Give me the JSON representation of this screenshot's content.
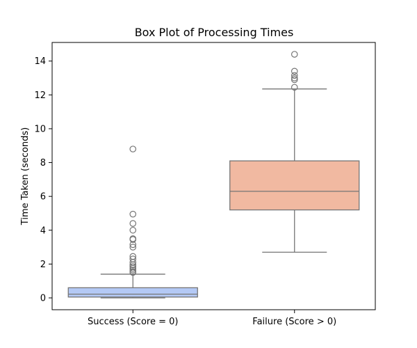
{
  "chart_data": {
    "type": "box",
    "title": "Box Plot of Processing Times",
    "xlabel": "",
    "ylabel": "Time Taken (seconds)",
    "ylim": [
      -0.7,
      15.1
    ],
    "yticks": [
      0,
      2,
      4,
      6,
      8,
      10,
      12,
      14
    ],
    "categories": [
      "Success (Score = 0)",
      "Failure (Score > 0)"
    ],
    "boxes": [
      {
        "category": "Success (Score = 0)",
        "color": "#b4c9f5",
        "whisker_low": 0.0,
        "q1": 0.05,
        "median": 0.22,
        "q3": 0.6,
        "whisker_high": 1.4,
        "outliers": [
          1.5,
          1.55,
          1.65,
          1.75,
          1.85,
          1.95,
          2.1,
          2.3,
          2.45,
          3.0,
          3.15,
          3.45,
          3.5,
          4.0,
          4.4,
          4.95,
          8.8
        ]
      },
      {
        "category": "Failure (Score > 0)",
        "color": "#f1b9a1",
        "whisker_low": 2.7,
        "q1": 5.2,
        "median": 6.3,
        "q3": 8.1,
        "whisker_high": 12.35,
        "outliers": [
          12.45,
          12.9,
          13.0,
          13.15,
          13.4,
          14.4
        ]
      }
    ],
    "grid": false,
    "legend": "none"
  },
  "colors": {
    "box_edge": "#757575",
    "axes": "#000000"
  }
}
